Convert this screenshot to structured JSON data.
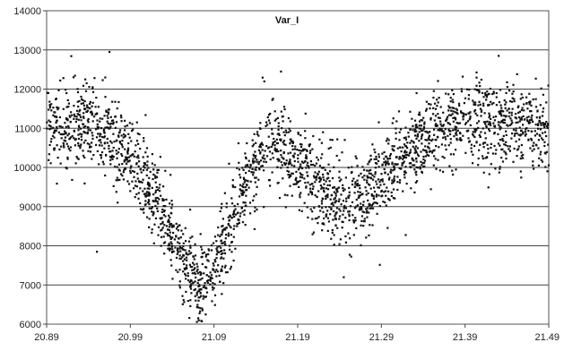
{
  "chart_data": {
    "type": "scatter",
    "title": "Var_I",
    "xlabel": "",
    "ylabel": "",
    "xlim": [
      20.89,
      21.49
    ],
    "ylim": [
      6000,
      14000
    ],
    "x_ticks": [
      "20.89",
      "20.99",
      "21.09",
      "21.19",
      "21.29",
      "21.39",
      "21.49"
    ],
    "y_ticks": [
      "6000",
      "7000",
      "8000",
      "9000",
      "10000",
      "11000",
      "12000",
      "13000",
      "14000"
    ],
    "grid": "horizontal",
    "legend": "none",
    "marker_color": "#111111",
    "x_range": [
      20.89,
      21.49
    ],
    "n_points": 2600,
    "trend": [
      [
        20.89,
        11000
      ],
      [
        20.94,
        11100
      ],
      [
        20.98,
        10600
      ],
      [
        21.0,
        10000
      ],
      [
        21.03,
        8800
      ],
      [
        21.055,
        7500
      ],
      [
        21.075,
        6900
      ],
      [
        21.09,
        7500
      ],
      [
        21.13,
        9800
      ],
      [
        21.16,
        10700
      ],
      [
        21.19,
        10100
      ],
      [
        21.22,
        9400
      ],
      [
        21.25,
        9000
      ],
      [
        21.27,
        9300
      ],
      [
        21.32,
        10400
      ],
      [
        21.36,
        11000
      ],
      [
        21.43,
        11200
      ],
      [
        21.49,
        11000
      ]
    ],
    "scatter_sd": 520,
    "outliers": [
      [
        20.965,
        12950
      ],
      [
        20.95,
        7850
      ],
      [
        21.17,
        12450
      ],
      [
        21.245,
        7200
      ],
      [
        21.43,
        12850
      ],
      [
        21.08,
        6250
      ],
      [
        21.15,
        12200
      ],
      [
        20.96,
        12300
      ]
    ]
  }
}
